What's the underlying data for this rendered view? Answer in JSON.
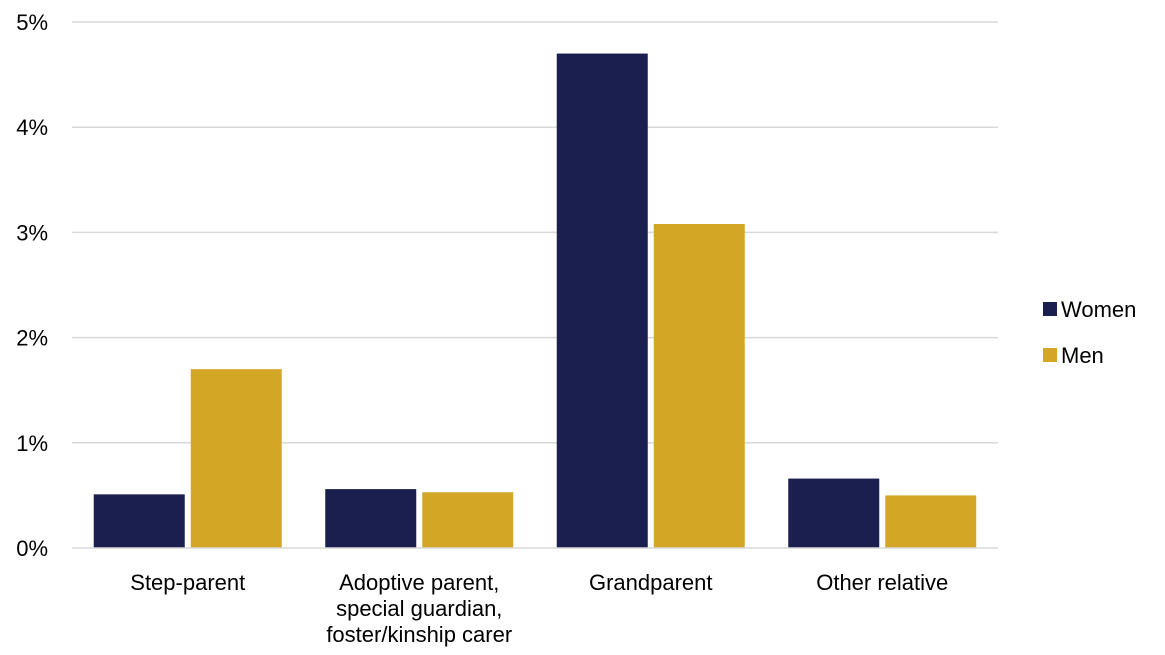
{
  "chart_data": {
    "type": "bar",
    "title": "",
    "xlabel": "",
    "ylabel": "",
    "ylim": [
      0,
      5
    ],
    "yticks": [
      "0%",
      "1%",
      "2%",
      "3%",
      "4%",
      "5%"
    ],
    "ytick_values": [
      0,
      1,
      2,
      3,
      4,
      5
    ],
    "grid": true,
    "legend_position": "right",
    "categories": [
      [
        "Step-parent"
      ],
      [
        "Adoptive parent,",
        "special guardian,",
        "foster/kinship carer"
      ],
      [
        "Grandparent"
      ],
      [
        "Other relative"
      ]
    ],
    "series": [
      {
        "name": "Women",
        "color": "#1a1f4f",
        "values": [
          0.51,
          0.56,
          4.7,
          0.66
        ]
      },
      {
        "name": "Men",
        "color": "#d4a626",
        "values": [
          1.7,
          0.53,
          3.08,
          0.5
        ]
      }
    ]
  }
}
